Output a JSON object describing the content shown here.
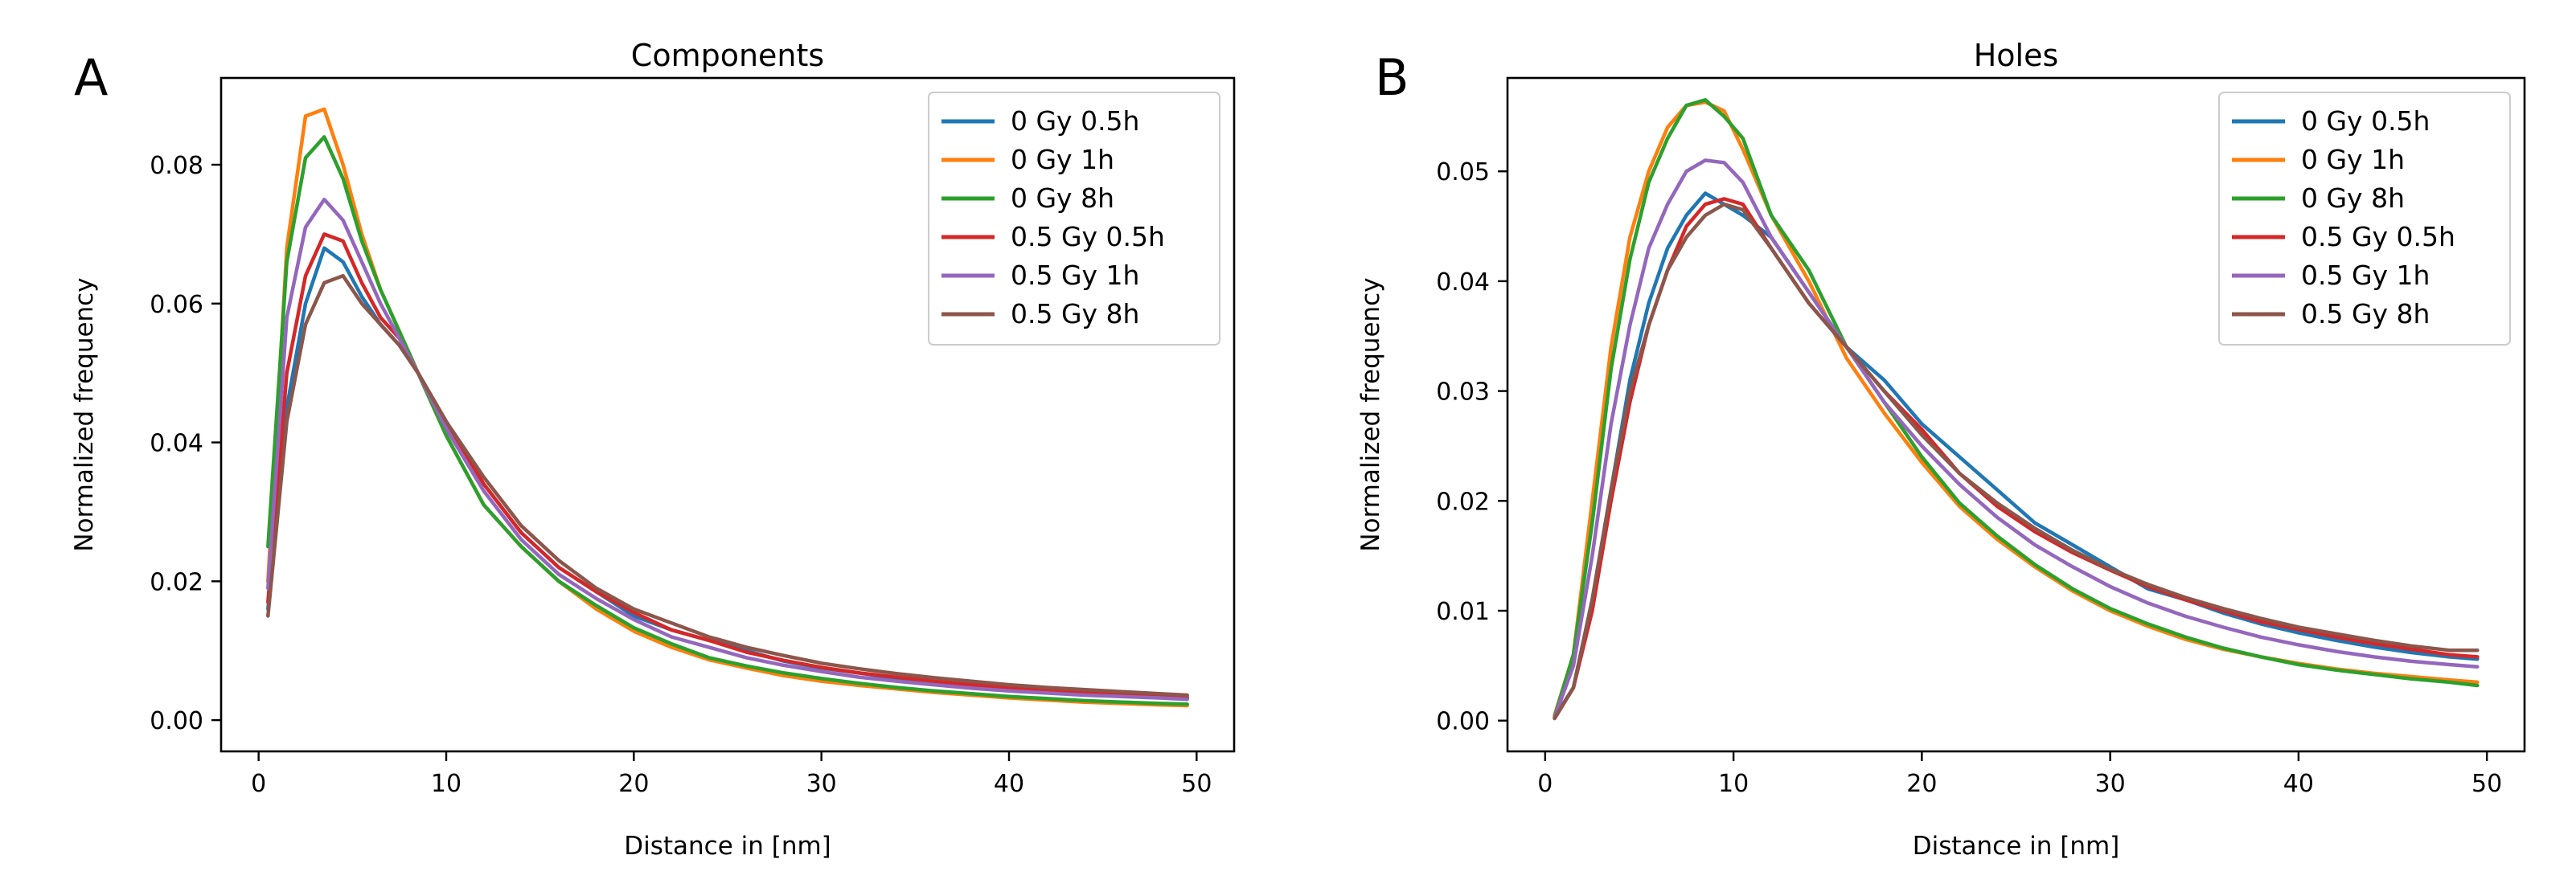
{
  "chart_data": [
    {
      "panel": "A",
      "type": "line",
      "title": "Components",
      "xlabel": "Distance in [nm]",
      "ylabel": "Normalized frequency",
      "xlim": [
        -2,
        52
      ],
      "ylim": [
        -0.0045,
        0.0925
      ],
      "xticks": [
        0,
        10,
        20,
        30,
        40,
        50
      ],
      "yticks": [
        0.0,
        0.02,
        0.04,
        0.06,
        0.08
      ],
      "ytick_labels": [
        "0.00",
        "0.02",
        "0.04",
        "0.06",
        "0.08"
      ],
      "legend_position": "top-right",
      "series": [
        {
          "name": "0 Gy 0.5h",
          "color": "#1f77b4",
          "x": [
            0.5,
            1.5,
            2.5,
            3.5,
            4.5,
            5.5,
            6.5,
            7.5,
            8.5,
            10,
            12,
            14,
            16,
            18,
            20,
            22,
            24,
            26,
            28,
            30,
            32,
            34,
            36,
            38,
            40,
            42,
            44,
            46,
            48,
            49.5
          ],
          "y": [
            0.016,
            0.045,
            0.06,
            0.068,
            0.066,
            0.061,
            0.057,
            0.054,
            0.05,
            0.043,
            0.034,
            0.027,
            0.022,
            0.0185,
            0.015,
            0.013,
            0.0115,
            0.01,
            0.0085,
            0.0075,
            0.0068,
            0.006,
            0.0055,
            0.005,
            0.0046,
            0.0042,
            0.0038,
            0.0036,
            0.0034,
            0.0032
          ]
        },
        {
          "name": "0 Gy 1h",
          "color": "#ff7f0e",
          "x": [
            0.5,
            1.5,
            2.5,
            3.5,
            4.5,
            5.5,
            6.5,
            7.5,
            8.5,
            10,
            12,
            14,
            16,
            18,
            20,
            22,
            24,
            26,
            28,
            30,
            32,
            34,
            36,
            38,
            40,
            42,
            44,
            46,
            48,
            49.5
          ],
          "y": [
            0.02,
            0.068,
            0.087,
            0.088,
            0.08,
            0.07,
            0.062,
            0.056,
            0.05,
            0.041,
            0.031,
            0.025,
            0.02,
            0.016,
            0.0128,
            0.0105,
            0.0087,
            0.0075,
            0.0064,
            0.0056,
            0.005,
            0.0045,
            0.004,
            0.0036,
            0.0032,
            0.0029,
            0.0026,
            0.0024,
            0.0022,
            0.0021
          ]
        },
        {
          "name": "0 Gy 8h",
          "color": "#2ca02c",
          "x": [
            0.5,
            1.5,
            2.5,
            3.5,
            4.5,
            5.5,
            6.5,
            7.5,
            8.5,
            10,
            12,
            14,
            16,
            18,
            20,
            22,
            24,
            26,
            28,
            30,
            32,
            34,
            36,
            38,
            40,
            42,
            44,
            46,
            48,
            49.5
          ],
          "y": [
            0.025,
            0.066,
            0.081,
            0.084,
            0.078,
            0.069,
            0.062,
            0.056,
            0.05,
            0.041,
            0.031,
            0.025,
            0.02,
            0.0165,
            0.0133,
            0.011,
            0.009,
            0.0078,
            0.0068,
            0.006,
            0.0053,
            0.0047,
            0.0042,
            0.0038,
            0.0034,
            0.0031,
            0.0028,
            0.0026,
            0.0024,
            0.0023
          ]
        },
        {
          "name": "0.5 Gy 0.5h",
          "color": "#d62728",
          "x": [
            0.5,
            1.5,
            2.5,
            3.5,
            4.5,
            5.5,
            6.5,
            7.5,
            8.5,
            10,
            12,
            14,
            16,
            18,
            20,
            22,
            24,
            26,
            28,
            30,
            32,
            34,
            36,
            38,
            40,
            42,
            44,
            46,
            48,
            49.5
          ],
          "y": [
            0.017,
            0.05,
            0.064,
            0.07,
            0.069,
            0.063,
            0.058,
            0.055,
            0.05,
            0.043,
            0.034,
            0.027,
            0.022,
            0.0185,
            0.0155,
            0.013,
            0.0115,
            0.0098,
            0.0086,
            0.0076,
            0.0068,
            0.0062,
            0.0056,
            0.0051,
            0.0047,
            0.0043,
            0.0039,
            0.0037,
            0.0035,
            0.0033
          ]
        },
        {
          "name": "0.5 Gy 1h",
          "color": "#9467bd",
          "x": [
            0.5,
            1.5,
            2.5,
            3.5,
            4.5,
            5.5,
            6.5,
            7.5,
            8.5,
            10,
            12,
            14,
            16,
            18,
            20,
            22,
            24,
            26,
            28,
            30,
            32,
            34,
            36,
            38,
            40,
            42,
            44,
            46,
            48,
            49.5
          ],
          "y": [
            0.019,
            0.058,
            0.071,
            0.075,
            0.072,
            0.066,
            0.06,
            0.055,
            0.05,
            0.042,
            0.033,
            0.026,
            0.021,
            0.0175,
            0.0145,
            0.012,
            0.0105,
            0.009,
            0.0079,
            0.007,
            0.0062,
            0.0056,
            0.0051,
            0.0046,
            0.0042,
            0.0039,
            0.0036,
            0.0034,
            0.0032,
            0.003
          ]
        },
        {
          "name": "0.5 Gy 8h",
          "color": "#8c564b",
          "x": [
            0.5,
            1.5,
            2.5,
            3.5,
            4.5,
            5.5,
            6.5,
            7.5,
            8.5,
            10,
            12,
            14,
            16,
            18,
            20,
            22,
            24,
            26,
            28,
            30,
            32,
            34,
            36,
            38,
            40,
            42,
            44,
            46,
            48,
            49.5
          ],
          "y": [
            0.015,
            0.043,
            0.057,
            0.063,
            0.064,
            0.06,
            0.057,
            0.054,
            0.05,
            0.043,
            0.035,
            0.028,
            0.023,
            0.019,
            0.016,
            0.014,
            0.012,
            0.0105,
            0.0093,
            0.0082,
            0.0074,
            0.0067,
            0.0061,
            0.0056,
            0.0051,
            0.0047,
            0.0044,
            0.0041,
            0.0038,
            0.0036
          ]
        }
      ]
    },
    {
      "panel": "B",
      "type": "line",
      "title": "Holes",
      "xlabel": "Distance in [nm]",
      "ylabel": "Normalized frequency",
      "xlim": [
        -2,
        52
      ],
      "ylim": [
        -0.0028,
        0.0585
      ],
      "xticks": [
        0,
        10,
        20,
        30,
        40,
        50
      ],
      "yticks": [
        0.0,
        0.01,
        0.02,
        0.03,
        0.04,
        0.05
      ],
      "ytick_labels": [
        "0.00",
        "0.01",
        "0.02",
        "0.03",
        "0.04",
        "0.05"
      ],
      "legend_position": "top-right",
      "series": [
        {
          "name": "0 Gy 0.5h",
          "color": "#1f77b4",
          "x": [
            0.5,
            1.5,
            2.5,
            3.5,
            4.5,
            5.5,
            6.5,
            7.5,
            8.5,
            9.5,
            10.5,
            12,
            14,
            16,
            18,
            20,
            22,
            24,
            26,
            28,
            30,
            32,
            34,
            36,
            38,
            40,
            42,
            44,
            46,
            48,
            49.5
          ],
          "y": [
            0.0003,
            0.003,
            0.011,
            0.021,
            0.031,
            0.038,
            0.043,
            0.046,
            0.048,
            0.047,
            0.046,
            0.044,
            0.039,
            0.034,
            0.031,
            0.027,
            0.024,
            0.021,
            0.018,
            0.016,
            0.014,
            0.012,
            0.011,
            0.0098,
            0.0088,
            0.008,
            0.0073,
            0.0067,
            0.0062,
            0.0058,
            0.0056
          ]
        },
        {
          "name": "0 Gy 1h",
          "color": "#ff7f0e",
          "x": [
            0.5,
            1.5,
            2.5,
            3.5,
            4.5,
            5.5,
            6.5,
            7.5,
            8.5,
            9.5,
            10.5,
            12,
            14,
            16,
            18,
            20,
            22,
            24,
            26,
            28,
            30,
            32,
            34,
            36,
            38,
            40,
            42,
            44,
            46,
            48,
            49.5
          ],
          "y": [
            0.0005,
            0.006,
            0.02,
            0.034,
            0.044,
            0.05,
            0.054,
            0.056,
            0.0563,
            0.0555,
            0.052,
            0.046,
            0.04,
            0.033,
            0.028,
            0.0235,
            0.0195,
            0.0165,
            0.014,
            0.0118,
            0.01,
            0.0086,
            0.0074,
            0.0065,
            0.0058,
            0.0052,
            0.0047,
            0.0043,
            0.004,
            0.0037,
            0.0035
          ]
        },
        {
          "name": "0 Gy 8h",
          "color": "#2ca02c",
          "x": [
            0.5,
            1.5,
            2.5,
            3.5,
            4.5,
            5.5,
            6.5,
            7.5,
            8.5,
            9.5,
            10.5,
            12,
            14,
            16,
            18,
            20,
            22,
            24,
            26,
            28,
            30,
            32,
            34,
            36,
            38,
            40,
            42,
            44,
            46,
            48,
            49.5
          ],
          "y": [
            0.0004,
            0.006,
            0.018,
            0.032,
            0.042,
            0.049,
            0.053,
            0.056,
            0.0565,
            0.055,
            0.053,
            0.046,
            0.041,
            0.034,
            0.029,
            0.024,
            0.0198,
            0.0168,
            0.0142,
            0.012,
            0.0102,
            0.0088,
            0.0076,
            0.0066,
            0.0058,
            0.0051,
            0.0046,
            0.0042,
            0.0038,
            0.0035,
            0.0032
          ]
        },
        {
          "name": "0.5 Gy 0.5h",
          "color": "#d62728",
          "x": [
            0.5,
            1.5,
            2.5,
            3.5,
            4.5,
            5.5,
            6.5,
            7.5,
            8.5,
            9.5,
            10.5,
            12,
            14,
            16,
            18,
            20,
            22,
            24,
            26,
            28,
            30,
            32,
            34,
            36,
            38,
            40,
            42,
            44,
            46,
            48,
            49.5
          ],
          "y": [
            0.0002,
            0.003,
            0.01,
            0.02,
            0.029,
            0.036,
            0.041,
            0.045,
            0.047,
            0.0475,
            0.047,
            0.043,
            0.038,
            0.034,
            0.03,
            0.0265,
            0.0225,
            0.0195,
            0.0172,
            0.0153,
            0.0137,
            0.0122,
            0.011,
            0.01,
            0.009,
            0.0083,
            0.0076,
            0.007,
            0.0065,
            0.006,
            0.0058
          ]
        },
        {
          "name": "0.5 Gy 1h",
          "color": "#9467bd",
          "x": [
            0.5,
            1.5,
            2.5,
            3.5,
            4.5,
            5.5,
            6.5,
            7.5,
            8.5,
            9.5,
            10.5,
            12,
            14,
            16,
            18,
            20,
            22,
            24,
            26,
            28,
            30,
            32,
            34,
            36,
            38,
            40,
            42,
            44,
            46,
            48,
            49.5
          ],
          "y": [
            0.0003,
            0.005,
            0.015,
            0.027,
            0.036,
            0.043,
            0.047,
            0.05,
            0.051,
            0.0508,
            0.049,
            0.044,
            0.039,
            0.034,
            0.029,
            0.025,
            0.0215,
            0.0185,
            0.016,
            0.014,
            0.0122,
            0.0107,
            0.0095,
            0.0085,
            0.0076,
            0.0069,
            0.0063,
            0.0058,
            0.0054,
            0.0051,
            0.0049
          ]
        },
        {
          "name": "0.5 Gy 8h",
          "color": "#8c564b",
          "x": [
            0.5,
            1.5,
            2.5,
            3.5,
            4.5,
            5.5,
            6.5,
            7.5,
            8.5,
            9.5,
            10.5,
            12,
            14,
            16,
            18,
            20,
            22,
            24,
            26,
            28,
            30,
            32,
            34,
            36,
            38,
            40,
            42,
            44,
            46,
            48,
            49.5
          ],
          "y": [
            0.0002,
            0.003,
            0.011,
            0.021,
            0.03,
            0.036,
            0.041,
            0.044,
            0.046,
            0.047,
            0.0465,
            0.043,
            0.038,
            0.034,
            0.03,
            0.026,
            0.0225,
            0.0198,
            0.0175,
            0.0155,
            0.0138,
            0.0124,
            0.0112,
            0.0102,
            0.0093,
            0.0085,
            0.0079,
            0.0073,
            0.0068,
            0.0064,
            0.0064
          ]
        }
      ]
    }
  ]
}
